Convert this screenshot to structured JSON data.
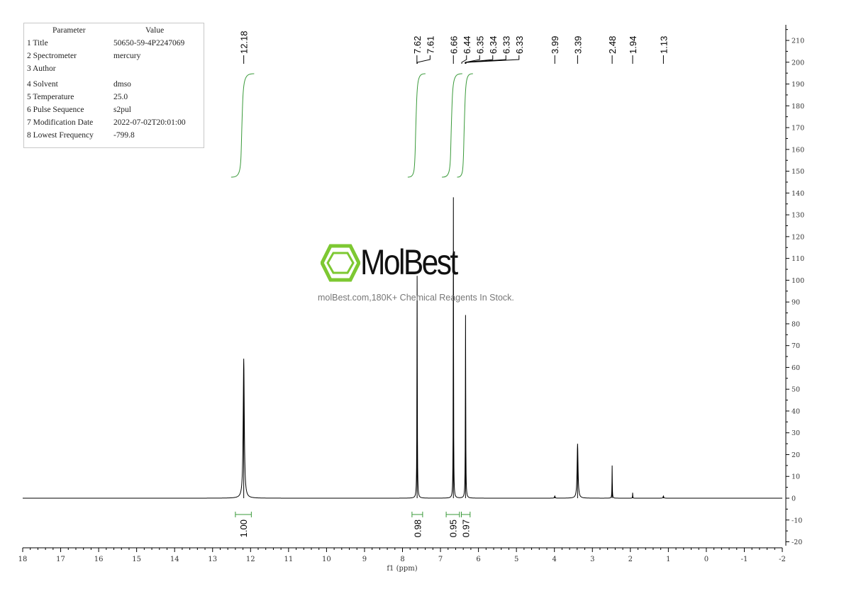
{
  "parameters": {
    "header": [
      "Parameter",
      "Value"
    ],
    "rows": [
      [
        "1 Title",
        "50650-59-4P2247069"
      ],
      [
        "2 Spectrometer",
        "mercury"
      ],
      [
        "3 Author",
        ""
      ],
      [
        "4 Solvent",
        "dmso"
      ],
      [
        "5 Temperature",
        "25.0"
      ],
      [
        "6 Pulse Sequence",
        "s2pul"
      ],
      [
        "7 Modification Date",
        "2022-07-02T20:01:00"
      ],
      [
        "8 Lowest Frequency",
        "-799.8"
      ]
    ]
  },
  "watermark": {
    "name": "MolBest",
    "tagline": "molBest.com,180K+ Chemical Reagents In Stock.",
    "color": "#7dc832"
  },
  "chart_data": {
    "type": "line",
    "xlabel": "f1 (ppm)",
    "xlim": [
      18,
      -2
    ],
    "ylim": [
      -20,
      215
    ],
    "x_ticks": [
      18,
      17,
      16,
      15,
      14,
      13,
      12,
      11,
      10,
      9,
      8,
      7,
      6,
      5,
      4,
      3,
      2,
      1,
      0,
      -1,
      -2
    ],
    "y_ticks": [
      -20,
      -10,
      0,
      10,
      20,
      30,
      40,
      50,
      60,
      70,
      80,
      90,
      100,
      110,
      120,
      130,
      140,
      150,
      160,
      170,
      180,
      190,
      200,
      210
    ],
    "line_color": "#000000",
    "integral_color": "#3a9a3a",
    "peaks": [
      {
        "ppm": 12.18,
        "height": 64,
        "width": 0.035
      },
      {
        "ppm": 7.615,
        "height": 102,
        "width": 0.012
      },
      {
        "ppm": 6.66,
        "height": 138,
        "width": 0.01
      },
      {
        "ppm": 6.34,
        "height": 84,
        "width": 0.012
      },
      {
        "ppm": 3.99,
        "height": 1,
        "width": 0.02
      },
      {
        "ppm": 3.39,
        "height": 25,
        "width": 0.03
      },
      {
        "ppm": 2.48,
        "height": 15,
        "width": 0.01
      },
      {
        "ppm": 1.94,
        "height": 2.5,
        "width": 0.008
      },
      {
        "ppm": 1.13,
        "height": 1,
        "width": 0.02
      }
    ],
    "peak_labels": [
      "12.18",
      "7.62",
      "7.61",
      "6.66",
      "6.44",
      "6.35",
      "6.34",
      "6.33",
      "6.33",
      "3.99",
      "3.39",
      "2.48",
      "1.94",
      "1.13"
    ],
    "integrals": [
      {
        "from": 12.4,
        "to": 11.98,
        "value": "1.00"
      },
      {
        "from": 7.75,
        "to": 7.47,
        "value": "0.98"
      },
      {
        "from": 6.85,
        "to": 6.5,
        "value": "0.95"
      },
      {
        "from": 6.45,
        "to": 6.22,
        "value": "0.97"
      }
    ]
  }
}
